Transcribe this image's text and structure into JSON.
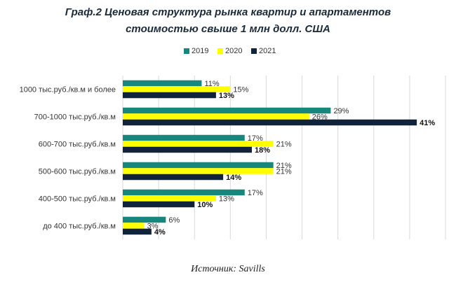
{
  "chart_data": {
    "type": "bar",
    "orientation": "horizontal",
    "title_line1": "Граф.2 Ценовая структура рынка квартир и апартаментов",
    "title_line2": "стоимостью свыше 1 млн долл. США",
    "categories": [
      "1000 тыс.руб./кв.м и более",
      "700-1000 тыс.руб./кв.м",
      "600-700 тыс.руб./кв.м",
      "500-600 тыс.руб./кв.м",
      "400-500 тыс.руб./кв.м",
      "до 400 тыс.руб./кв.м"
    ],
    "series": [
      {
        "name": "2019",
        "color": "#17877d",
        "values": [
          11,
          29,
          17,
          21,
          17,
          6
        ]
      },
      {
        "name": "2020",
        "color": "#ffff00",
        "values": [
          15,
          26,
          21,
          21,
          13,
          3
        ]
      },
      {
        "name": "2021",
        "color": "#10233a",
        "values": [
          13,
          41,
          18,
          14,
          10,
          4
        ]
      }
    ],
    "value_suffix": "%",
    "xlim": [
      0,
      45
    ],
    "grid": "vertical",
    "legend_position": "top"
  },
  "source": "Источник: Savills"
}
